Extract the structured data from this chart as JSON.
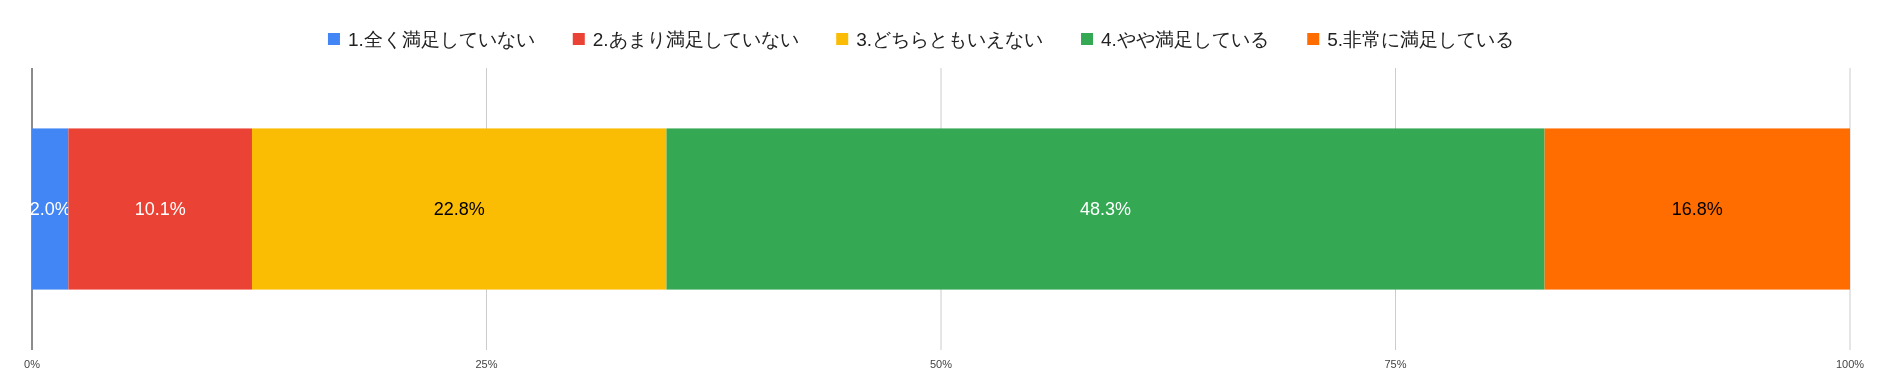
{
  "chart_data": {
    "type": "bar",
    "orientation": "horizontal",
    "stacked": true,
    "categories": [
      null
    ],
    "series": [
      {
        "name": "1.全く満足していない",
        "color": "#4285f4",
        "values": [
          2.0
        ],
        "value_labels": [
          "2.0%"
        ]
      },
      {
        "name": "2.あまり満足していない",
        "color": "#ea4335",
        "values": [
          10.1
        ],
        "value_labels": [
          "10.1%"
        ]
      },
      {
        "name": "3.どちらともいえない",
        "color": "#fbbc04",
        "values": [
          22.8
        ],
        "value_labels": [
          "22.8%"
        ]
      },
      {
        "name": "4.やや満足している",
        "color": "#34a853",
        "values": [
          48.3
        ],
        "value_labels": [
          "48.3%"
        ]
      },
      {
        "name": "5.非常に満足している",
        "color": "#ff6d01",
        "values": [
          16.8
        ],
        "value_labels": [
          "16.8%"
        ]
      }
    ],
    "xlim": [
      0,
      100
    ],
    "xticks": [
      {
        "value": 0,
        "label": "0%"
      },
      {
        "value": 25,
        "label": "25%"
      },
      {
        "value": 50,
        "label": "50%"
      },
      {
        "value": 75,
        "label": "75%"
      },
      {
        "value": 100,
        "label": "100%"
      }
    ],
    "grid": "x",
    "legend": "top"
  }
}
